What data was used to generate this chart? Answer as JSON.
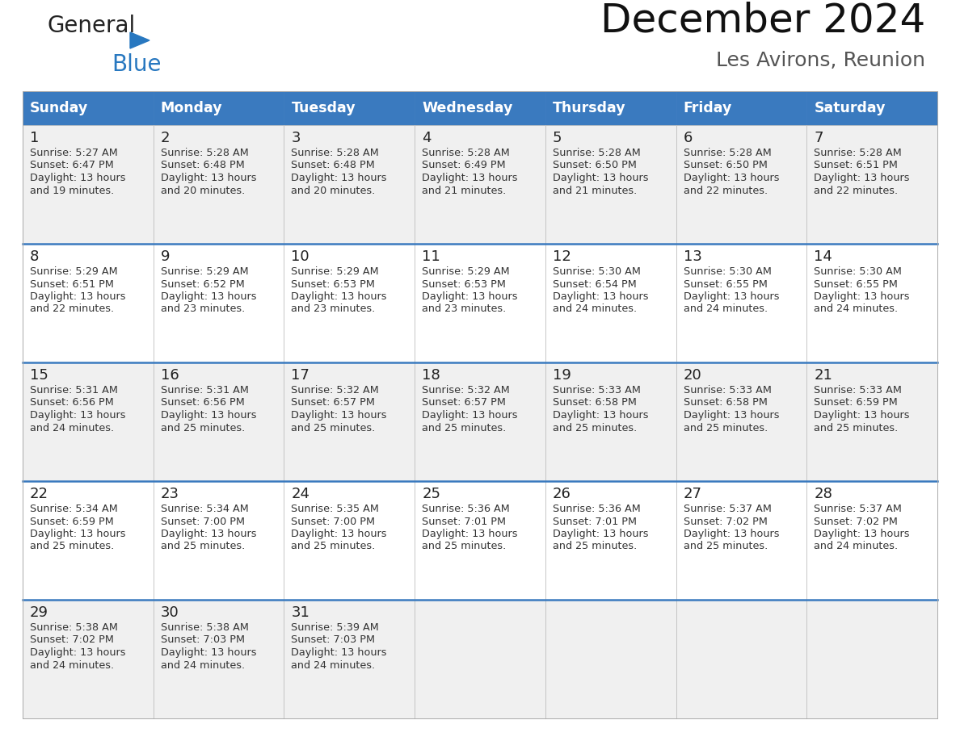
{
  "title": "December 2024",
  "subtitle": "Les Avirons, Reunion",
  "days_of_week": [
    "Sunday",
    "Monday",
    "Tuesday",
    "Wednesday",
    "Thursday",
    "Friday",
    "Saturday"
  ],
  "header_bg": "#3a7abf",
  "header_text": "#ffffff",
  "cell_bg_odd": "#f0f0f0",
  "cell_bg_even": "#ffffff",
  "day_num_color": "#222222",
  "text_color": "#333333",
  "logo_general_color": "#222222",
  "logo_blue_color": "#2878c0",
  "separator_color": "#3a7abf",
  "border_color": "#aaaaaa",
  "calendar_data": [
    [
      {
        "day": 1,
        "sunrise": "5:27 AM",
        "sunset": "6:47 PM",
        "daylight_line1": "Daylight: 13 hours",
        "daylight_line2": "and 19 minutes."
      },
      {
        "day": 2,
        "sunrise": "5:28 AM",
        "sunset": "6:48 PM",
        "daylight_line1": "Daylight: 13 hours",
        "daylight_line2": "and 20 minutes."
      },
      {
        "day": 3,
        "sunrise": "5:28 AM",
        "sunset": "6:48 PM",
        "daylight_line1": "Daylight: 13 hours",
        "daylight_line2": "and 20 minutes."
      },
      {
        "day": 4,
        "sunrise": "5:28 AM",
        "sunset": "6:49 PM",
        "daylight_line1": "Daylight: 13 hours",
        "daylight_line2": "and 21 minutes."
      },
      {
        "day": 5,
        "sunrise": "5:28 AM",
        "sunset": "6:50 PM",
        "daylight_line1": "Daylight: 13 hours",
        "daylight_line2": "and 21 minutes."
      },
      {
        "day": 6,
        "sunrise": "5:28 AM",
        "sunset": "6:50 PM",
        "daylight_line1": "Daylight: 13 hours",
        "daylight_line2": "and 22 minutes."
      },
      {
        "day": 7,
        "sunrise": "5:28 AM",
        "sunset": "6:51 PM",
        "daylight_line1": "Daylight: 13 hours",
        "daylight_line2": "and 22 minutes."
      }
    ],
    [
      {
        "day": 8,
        "sunrise": "5:29 AM",
        "sunset": "6:51 PM",
        "daylight_line1": "Daylight: 13 hours",
        "daylight_line2": "and 22 minutes."
      },
      {
        "day": 9,
        "sunrise": "5:29 AM",
        "sunset": "6:52 PM",
        "daylight_line1": "Daylight: 13 hours",
        "daylight_line2": "and 23 minutes."
      },
      {
        "day": 10,
        "sunrise": "5:29 AM",
        "sunset": "6:53 PM",
        "daylight_line1": "Daylight: 13 hours",
        "daylight_line2": "and 23 minutes."
      },
      {
        "day": 11,
        "sunrise": "5:29 AM",
        "sunset": "6:53 PM",
        "daylight_line1": "Daylight: 13 hours",
        "daylight_line2": "and 23 minutes."
      },
      {
        "day": 12,
        "sunrise": "5:30 AM",
        "sunset": "6:54 PM",
        "daylight_line1": "Daylight: 13 hours",
        "daylight_line2": "and 24 minutes."
      },
      {
        "day": 13,
        "sunrise": "5:30 AM",
        "sunset": "6:55 PM",
        "daylight_line1": "Daylight: 13 hours",
        "daylight_line2": "and 24 minutes."
      },
      {
        "day": 14,
        "sunrise": "5:30 AM",
        "sunset": "6:55 PM",
        "daylight_line1": "Daylight: 13 hours",
        "daylight_line2": "and 24 minutes."
      }
    ],
    [
      {
        "day": 15,
        "sunrise": "5:31 AM",
        "sunset": "6:56 PM",
        "daylight_line1": "Daylight: 13 hours",
        "daylight_line2": "and 24 minutes."
      },
      {
        "day": 16,
        "sunrise": "5:31 AM",
        "sunset": "6:56 PM",
        "daylight_line1": "Daylight: 13 hours",
        "daylight_line2": "and 25 minutes."
      },
      {
        "day": 17,
        "sunrise": "5:32 AM",
        "sunset": "6:57 PM",
        "daylight_line1": "Daylight: 13 hours",
        "daylight_line2": "and 25 minutes."
      },
      {
        "day": 18,
        "sunrise": "5:32 AM",
        "sunset": "6:57 PM",
        "daylight_line1": "Daylight: 13 hours",
        "daylight_line2": "and 25 minutes."
      },
      {
        "day": 19,
        "sunrise": "5:33 AM",
        "sunset": "6:58 PM",
        "daylight_line1": "Daylight: 13 hours",
        "daylight_line2": "and 25 minutes."
      },
      {
        "day": 20,
        "sunrise": "5:33 AM",
        "sunset": "6:58 PM",
        "daylight_line1": "Daylight: 13 hours",
        "daylight_line2": "and 25 minutes."
      },
      {
        "day": 21,
        "sunrise": "5:33 AM",
        "sunset": "6:59 PM",
        "daylight_line1": "Daylight: 13 hours",
        "daylight_line2": "and 25 minutes."
      }
    ],
    [
      {
        "day": 22,
        "sunrise": "5:34 AM",
        "sunset": "6:59 PM",
        "daylight_line1": "Daylight: 13 hours",
        "daylight_line2": "and 25 minutes."
      },
      {
        "day": 23,
        "sunrise": "5:34 AM",
        "sunset": "7:00 PM",
        "daylight_line1": "Daylight: 13 hours",
        "daylight_line2": "and 25 minutes."
      },
      {
        "day": 24,
        "sunrise": "5:35 AM",
        "sunset": "7:00 PM",
        "daylight_line1": "Daylight: 13 hours",
        "daylight_line2": "and 25 minutes."
      },
      {
        "day": 25,
        "sunrise": "5:36 AM",
        "sunset": "7:01 PM",
        "daylight_line1": "Daylight: 13 hours",
        "daylight_line2": "and 25 minutes."
      },
      {
        "day": 26,
        "sunrise": "5:36 AM",
        "sunset": "7:01 PM",
        "daylight_line1": "Daylight: 13 hours",
        "daylight_line2": "and 25 minutes."
      },
      {
        "day": 27,
        "sunrise": "5:37 AM",
        "sunset": "7:02 PM",
        "daylight_line1": "Daylight: 13 hours",
        "daylight_line2": "and 25 minutes."
      },
      {
        "day": 28,
        "sunrise": "5:37 AM",
        "sunset": "7:02 PM",
        "daylight_line1": "Daylight: 13 hours",
        "daylight_line2": "and 24 minutes."
      }
    ],
    [
      {
        "day": 29,
        "sunrise": "5:38 AM",
        "sunset": "7:02 PM",
        "daylight_line1": "Daylight: 13 hours",
        "daylight_line2": "and 24 minutes."
      },
      {
        "day": 30,
        "sunrise": "5:38 AM",
        "sunset": "7:03 PM",
        "daylight_line1": "Daylight: 13 hours",
        "daylight_line2": "and 24 minutes."
      },
      {
        "day": 31,
        "sunrise": "5:39 AM",
        "sunset": "7:03 PM",
        "daylight_line1": "Daylight: 13 hours",
        "daylight_line2": "and 24 minutes."
      },
      null,
      null,
      null,
      null
    ]
  ]
}
